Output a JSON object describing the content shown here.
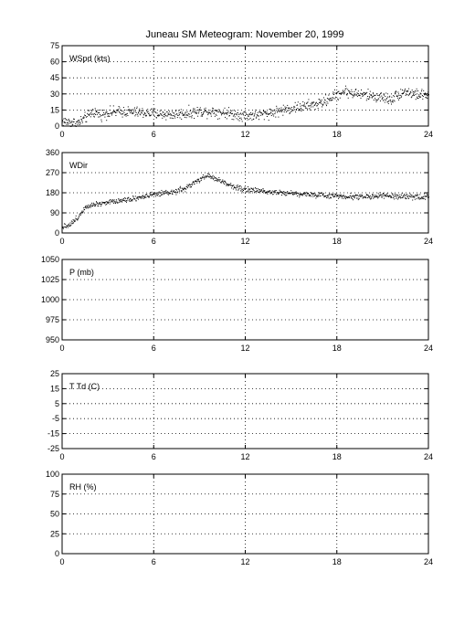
{
  "title": "Juneau SM Meteogram:   November 20, 1999",
  "chart_data": [
    {
      "type": "scatter",
      "ylabel": "WSpd (kts)",
      "xlim": [
        0,
        24
      ],
      "ylim": [
        0,
        75
      ],
      "xticks": [
        0,
        6,
        12,
        18,
        24
      ],
      "yticks": [
        0,
        15,
        30,
        45,
        60,
        75
      ],
      "grid": true,
      "trend": [
        [
          0,
          5
        ],
        [
          0.5,
          4
        ],
        [
          1,
          3
        ],
        [
          1.5,
          8
        ],
        [
          2,
          14
        ],
        [
          2.5,
          11
        ],
        [
          3,
          13
        ],
        [
          4,
          14
        ],
        [
          5,
          13
        ],
        [
          6,
          12
        ],
        [
          7,
          11
        ],
        [
          8,
          12
        ],
        [
          9,
          14
        ],
        [
          10,
          14
        ],
        [
          11,
          12
        ],
        [
          12,
          10
        ],
        [
          13,
          11
        ],
        [
          14,
          14
        ],
        [
          15,
          17
        ],
        [
          16,
          19
        ],
        [
          17,
          22
        ],
        [
          18,
          30
        ],
        [
          18.5,
          33
        ],
        [
          19,
          31
        ],
        [
          20,
          29
        ],
        [
          21,
          27
        ],
        [
          21.5,
          25
        ],
        [
          22,
          30
        ],
        [
          22.5,
          33
        ],
        [
          23,
          30
        ],
        [
          24,
          29
        ]
      ],
      "jitter": 5
    },
    {
      "type": "scatter",
      "ylabel": "WDir",
      "xlim": [
        0,
        24
      ],
      "ylim": [
        0,
        360
      ],
      "xticks": [
        0,
        6,
        12,
        18,
        24
      ],
      "yticks": [
        0,
        90,
        180,
        270,
        360
      ],
      "grid": true,
      "trend": [
        [
          0,
          30
        ],
        [
          0.5,
          40
        ],
        [
          1,
          70
        ],
        [
          1.5,
          120
        ],
        [
          2,
          130
        ],
        [
          3,
          140
        ],
        [
          4,
          150
        ],
        [
          5,
          160
        ],
        [
          6,
          175
        ],
        [
          7,
          180
        ],
        [
          8,
          200
        ],
        [
          9,
          240
        ],
        [
          9.5,
          260
        ],
        [
          10,
          245
        ],
        [
          11,
          215
        ],
        [
          12,
          195
        ],
        [
          13,
          190
        ],
        [
          14,
          185
        ],
        [
          15,
          180
        ],
        [
          16,
          175
        ],
        [
          17,
          170
        ],
        [
          18,
          168
        ],
        [
          19,
          165
        ],
        [
          20,
          165
        ],
        [
          21,
          168
        ],
        [
          22,
          165
        ],
        [
          23,
          163
        ],
        [
          24,
          165
        ]
      ],
      "jitter": 12
    },
    {
      "type": "scatter",
      "ylabel": "P (mb)",
      "xlim": [
        0,
        24
      ],
      "ylim": [
        950,
        1050
      ],
      "xticks": [
        0,
        6,
        12,
        18,
        24
      ],
      "yticks": [
        950,
        975,
        1000,
        1025,
        1050
      ],
      "grid": true,
      "trend": [],
      "jitter": 0
    },
    {
      "type": "scatter",
      "ylabel": "T Td (C)",
      "xlim": [
        0,
        24
      ],
      "ylim": [
        -25,
        25
      ],
      "xticks": [
        0,
        6,
        12,
        18,
        24
      ],
      "yticks": [
        -25,
        -15,
        -5,
        5,
        15,
        25
      ],
      "grid": true,
      "trend": [],
      "jitter": 0
    },
    {
      "type": "scatter",
      "ylabel": "RH (%)",
      "xlim": [
        0,
        24
      ],
      "ylim": [
        0,
        100
      ],
      "xticks": [
        0,
        6,
        12,
        18,
        24
      ],
      "yticks": [
        0,
        25,
        50,
        75,
        100
      ],
      "grid": true,
      "trend": [],
      "jitter": 0
    }
  ]
}
